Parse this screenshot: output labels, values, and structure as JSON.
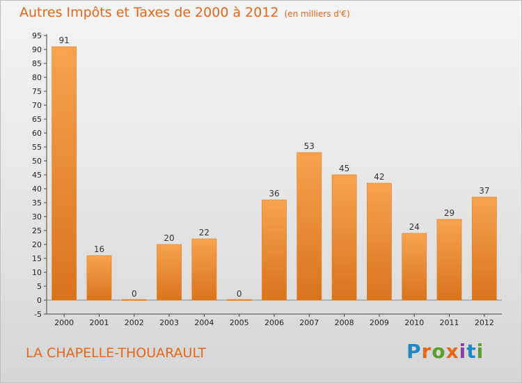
{
  "header": {
    "title": "Autres Impôts et Taxes de 2000 à 2012",
    "subtitle": "(en milliers d'€)"
  },
  "footer": {
    "place": "LA CHAPELLE-THOUARAULT",
    "logo_letters": [
      "P",
      "r",
      "o",
      "x",
      "i",
      "t",
      "i"
    ],
    "logo_colors": [
      "#1e88c8",
      "#e8661a",
      "#5aa02c",
      "#e8661a",
      "#8b3fa0",
      "#1e88c8",
      "#5aa02c"
    ]
  },
  "chart_data": {
    "type": "bar",
    "title": "Autres Impôts et Taxes de 2000 à 2012",
    "subtitle": "(en milliers d'€)",
    "categories": [
      "2000",
      "2001",
      "2002",
      "2003",
      "2004",
      "2005",
      "2006",
      "2007",
      "2008",
      "2009",
      "2010",
      "2011",
      "2012"
    ],
    "values": [
      91,
      16,
      0,
      20,
      22,
      0,
      36,
      53,
      45,
      42,
      24,
      29,
      37
    ],
    "ylim": [
      -5,
      95
    ],
    "yticks": [
      -5,
      0,
      5,
      10,
      15,
      20,
      25,
      30,
      35,
      40,
      45,
      50,
      55,
      60,
      65,
      70,
      75,
      80,
      85,
      90,
      95
    ],
    "grid": false,
    "bar_color": "#f0902f",
    "legend": "none"
  }
}
